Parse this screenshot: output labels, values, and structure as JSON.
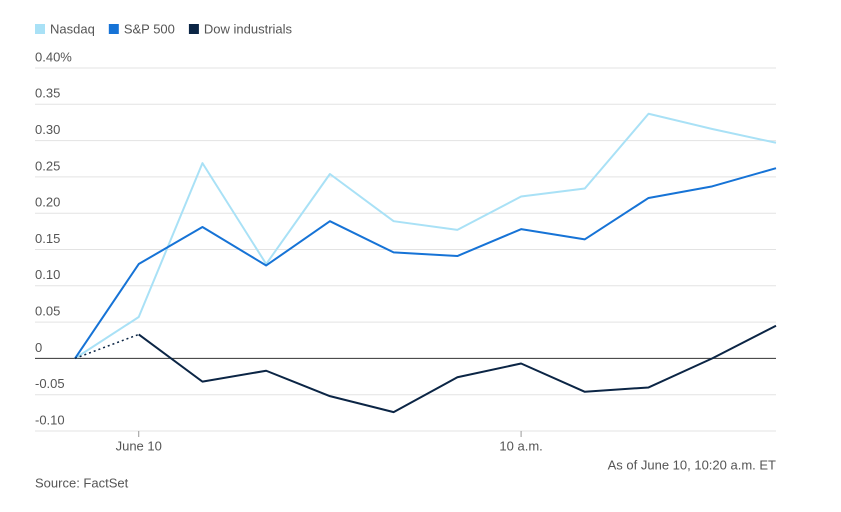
{
  "chart_data": {
    "type": "line",
    "categories": [
      null,
      "June 10",
      null,
      null,
      null,
      null,
      null,
      "10 a.m.",
      null,
      null,
      null,
      null
    ],
    "series": [
      {
        "name": "Nasdaq",
        "color": "#a9e1f6",
        "values": [
          0,
          0.057,
          0.269,
          0.13,
          0.254,
          0.189,
          0.177,
          0.223,
          0.234,
          0.337,
          0.316,
          0.297
        ]
      },
      {
        "name": "S&P 500",
        "color": "#1673d6",
        "values": [
          0,
          0.13,
          0.181,
          0.128,
          0.189,
          0.146,
          0.141,
          0.178,
          0.164,
          0.221,
          0.237,
          0.262
        ]
      },
      {
        "name": "Dow industrials",
        "color": "#0b2545",
        "dotted_first_segment": true,
        "values": [
          0,
          0.033,
          -0.032,
          -0.017,
          -0.052,
          -0.074,
          -0.026,
          -0.007,
          -0.046,
          -0.04,
          0,
          0.045
        ]
      }
    ],
    "ylim": [
      -0.1,
      0.4
    ],
    "yticks": [
      {
        "value": -0.1,
        "label": "-0.10"
      },
      -0.05,
      {
        "value": 0,
        "label": "0"
      },
      0.05,
      {
        "value": 0.1,
        "label": "0.10"
      },
      0.15,
      {
        "value": 0.2,
        "label": "0.20"
      },
      0.25,
      {
        "value": 0.3,
        "label": "0.30"
      },
      0.35,
      {
        "value": 0.4,
        "label": "0.40%"
      }
    ],
    "grid": true,
    "legend": "top-left",
    "annotations": [
      "As of June 10, 10:20 a.m. ET"
    ],
    "source": "Source: FactSet"
  }
}
